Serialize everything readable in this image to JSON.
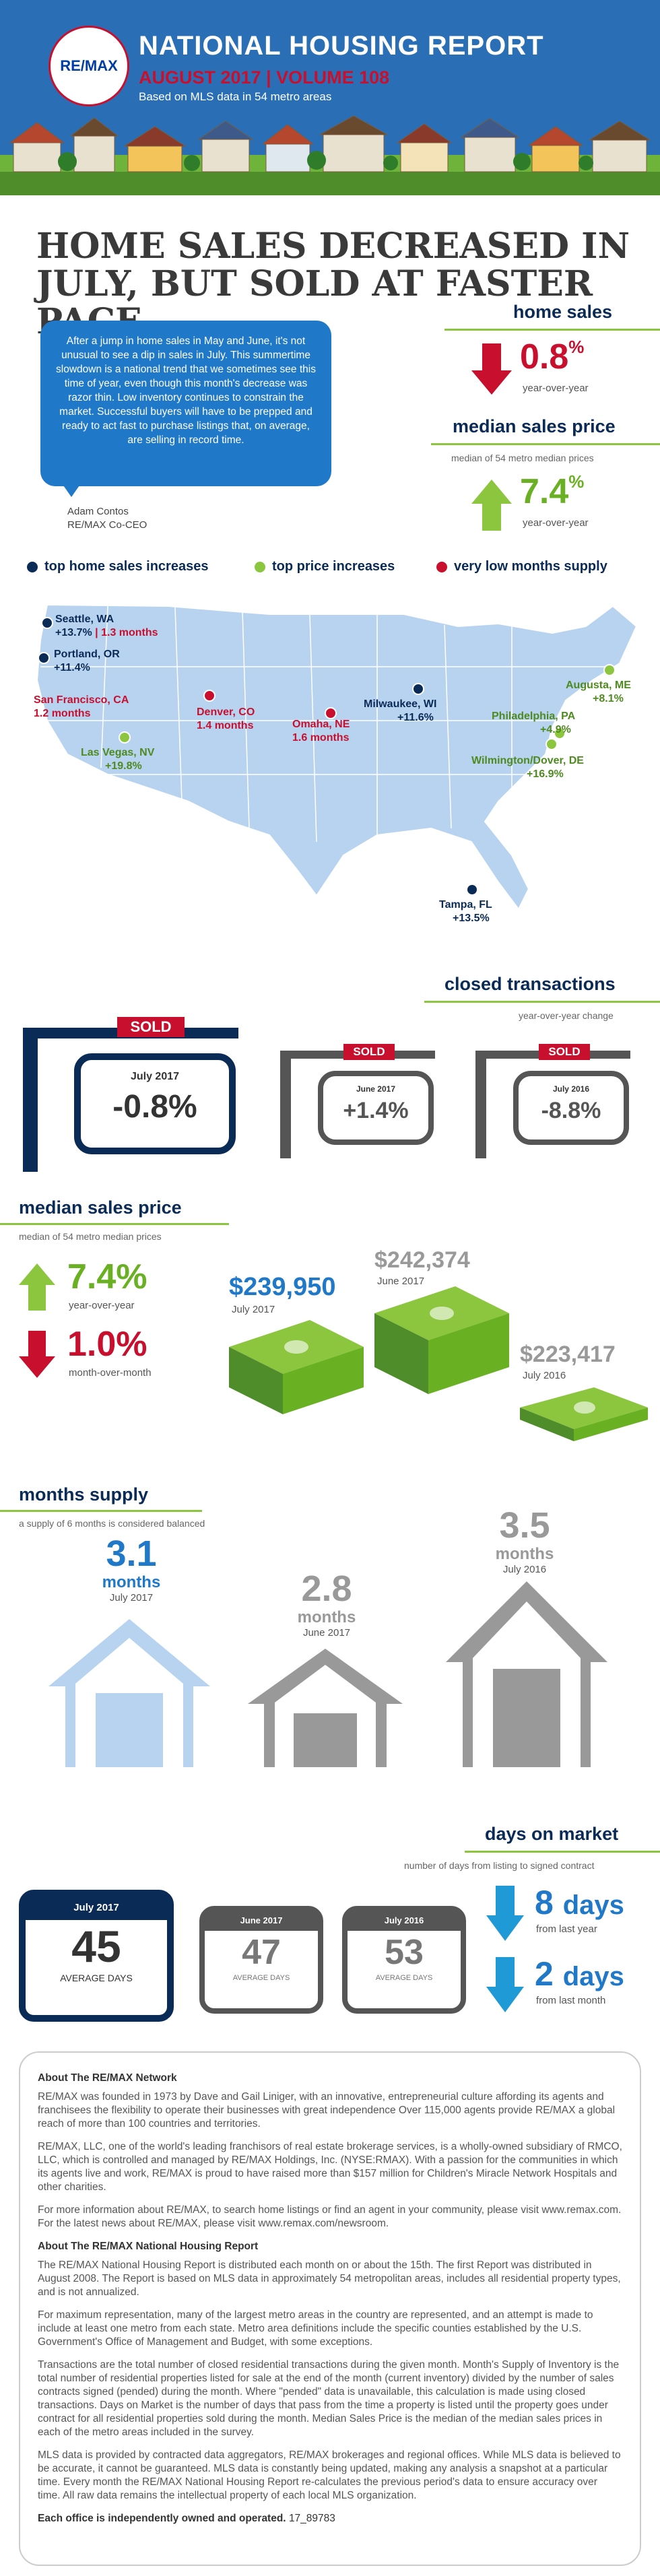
{
  "header": {
    "logo_text": "RE/MAX",
    "title": "NATIONAL HOUSING REPORT",
    "volume": "AUGUST 2017  |  VOLUME 108",
    "subtitle": "Based on MLS data in 54 metro areas"
  },
  "headline": "HOME SALES DECREASED IN JULY, BUT SOLD AT FASTER PACE",
  "quote": {
    "text": "After a jump in home sales in May and June, it's not unusual to see a dip in sales in July. This summertime slowdown is a national trend that we sometimes see this time of year, even though this month's decrease was razor thin. Low inventory continues to constrain the market. Successful buyers will have to be prepped and ready to act fast to purchase listings that, on average, are selling in record time.",
    "name": "Adam Contos",
    "role": "RE/MAX Co-CEO"
  },
  "home_sales": {
    "heading": "home sales",
    "value": "0.8",
    "unit": "%",
    "label": "year-over-year"
  },
  "median_price_top": {
    "heading": "median sales price",
    "sub": "median of 54 metro median prices",
    "value": "7.4",
    "unit": "%",
    "label": "year-over-year"
  },
  "legend": {
    "items": [
      {
        "label": "top home sales increases",
        "color": "#0b2b57"
      },
      {
        "label": "top price increases",
        "color": "#8cc63f"
      },
      {
        "label": "very low months supply",
        "color": "#c8102e"
      }
    ]
  },
  "map": {
    "cities": [
      {
        "name": "Seattle, WA",
        "value": "+13.7%",
        "extra": "1.3 months",
        "color": "#0b2b57"
      },
      {
        "name": "Portland, OR",
        "value": "+11.4%",
        "color": "#0b2b57"
      },
      {
        "name": "San Francisco, CA",
        "value": "1.2 months",
        "color": "#c8102e"
      },
      {
        "name": "Las Vegas, NV",
        "value": "+19.8%",
        "color": "#6ab023"
      },
      {
        "name": "Denver, CO",
        "value": "1.4 months",
        "color": "#c8102e"
      },
      {
        "name": "Omaha, NE",
        "value": "1.6 months",
        "color": "#c8102e"
      },
      {
        "name": "Milwaukee, WI",
        "value": "+11.6%",
        "color": "#0b2b57"
      },
      {
        "name": "Augusta, ME",
        "value": "+8.1%",
        "color": "#6ab023"
      },
      {
        "name": "Philadelphia, PA",
        "value": "+4.9%",
        "color": "#6ab023"
      },
      {
        "name": "Wilmington/Dover, DE",
        "value": "+16.9%",
        "color": "#6ab023"
      },
      {
        "name": "Tampa, FL",
        "value": "+13.5%",
        "color": "#0b2b57"
      }
    ]
  },
  "closed": {
    "heading": "closed transactions",
    "sub": "year-over-year change",
    "sold": "SOLD",
    "signs": [
      {
        "period": "July 2017",
        "value": "-0.8%"
      },
      {
        "period": "June 2017",
        "value": "+1.4%"
      },
      {
        "period": "July 2016",
        "value": "-8.8%"
      }
    ]
  },
  "median_price": {
    "heading": "median sales price",
    "sub": "median of 54 metro median prices",
    "yoy_value": "7.4%",
    "yoy_label": "year-over-year",
    "mom_value": "1.0%",
    "mom_label": "month-over-month",
    "prices": [
      {
        "value": "$239,950",
        "period": "July 2017"
      },
      {
        "value": "$242,374",
        "period": "June 2017"
      },
      {
        "value": "$223,417",
        "period": "July 2016"
      }
    ]
  },
  "supply": {
    "heading": "months supply",
    "sub": "a supply of 6 months is considered balanced",
    "unit": "months",
    "items": [
      {
        "value": "3.1",
        "period": "July 2017"
      },
      {
        "value": "2.8",
        "period": "June 2017"
      },
      {
        "value": "3.5",
        "period": "July 2016"
      }
    ]
  },
  "dom": {
    "heading": "days on market",
    "sub": "number of days from listing to signed contract",
    "avg_label": "AVERAGE DAYS",
    "cals": [
      {
        "period": "July 2017",
        "value": "45"
      },
      {
        "period": "June 2017",
        "value": "47"
      },
      {
        "period": "July 2016",
        "value": "53"
      }
    ],
    "changes": [
      {
        "value": "8",
        "unit": "days",
        "label": "from last year"
      },
      {
        "value": "2",
        "unit": "days",
        "label": "from last month"
      }
    ]
  },
  "about": {
    "h1": "About The RE/MAX Network",
    "p1": "RE/MAX was founded in 1973 by Dave and Gail Liniger, with an innovative, entrepreneurial culture affording its agents and franchisees the flexibility to operate their businesses with great independence Over 115,000 agents provide RE/MAX a global reach of more than 100 countries and territories.",
    "p2": "RE/MAX, LLC, one of the world's leading franchisors of real estate brokerage services, is a wholly-owned subsidiary of RMCO, LLC, which is controlled and managed by RE/MAX Holdings, Inc. (NYSE:RMAX). With a passion for the communities in which its agents live and work, RE/MAX is proud to have raised more than $157 million for Children's Miracle Network Hospitals and other charities.",
    "p3": "For more information about RE/MAX, to search home listings or find an agent in your community, please visit www.remax.com. For the latest news about RE/MAX, please visit www.remax.com/newsroom.",
    "h2": "About The RE/MAX National Housing Report",
    "p4": "The RE/MAX National Housing Report is distributed each month on or about the 15th. The first Report was distributed in August 2008. The Report is based on MLS data in approximately 54 metropolitan areas, includes all residential property types, and is not annualized.",
    "p5": "For maximum representation, many of the largest metro areas in the country are represented, and an attempt is made to include at least one metro from each state. Metro area definitions include the specific counties established by the U.S. Government's Office of Management and Budget, with some exceptions.",
    "p6": "Transactions are the total number of closed residential transactions during the given month. Month's Supply of Inventory is the total number of residential properties listed for sale at the end of the month (current inventory) divided by the number of sales contracts signed (pended) during the month. Where \"pended\" data is unavailable, this calculation is made using closed transactions. Days on Market is the number of days that pass from the time a property is listed until the property goes under contract for all residential properties sold during the month. Median Sales Price is the median of the median sales prices in each of the metro areas included in the survey.",
    "p7": "MLS data is provided by contracted data aggregators, RE/MAX brokerages and regional offices. While MLS data is believed to be accurate, it cannot be guaranteed. MLS data is constantly being updated, making any analysis a snapshot at a particular time. Every month the RE/MAX National Housing Report re-calculates the previous period's data to ensure accuracy over time. All raw data remains the intellectual property of each local MLS organization.",
    "footer": "Each office is independently owned and operated.",
    "code": "17_89783"
  }
}
